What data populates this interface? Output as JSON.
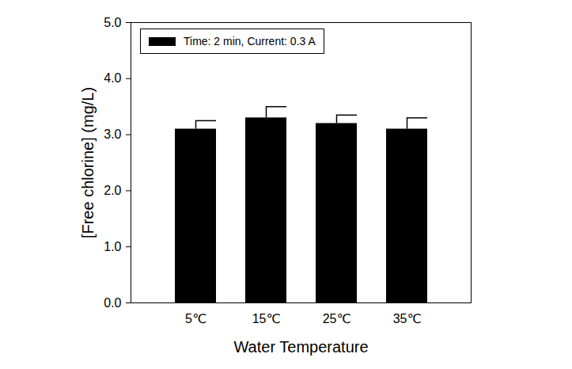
{
  "chart_data": {
    "type": "bar",
    "categories": [
      "5℃",
      "15℃",
      "25℃",
      "35℃"
    ],
    "series": [
      {
        "name": "Time: 2 min, Current: 0.3 A",
        "color": "#000000",
        "values": [
          3.1,
          3.3,
          3.2,
          3.1
        ],
        "errors": [
          0.15,
          0.2,
          0.15,
          0.2
        ]
      }
    ],
    "xlabel": "Water Temperature",
    "ylabel": "[Free chlorine] (mg/L)",
    "ylim": [
      0,
      5
    ],
    "yticks": [
      0,
      1,
      2,
      3,
      4,
      5
    ],
    "legend": "upper-left"
  }
}
